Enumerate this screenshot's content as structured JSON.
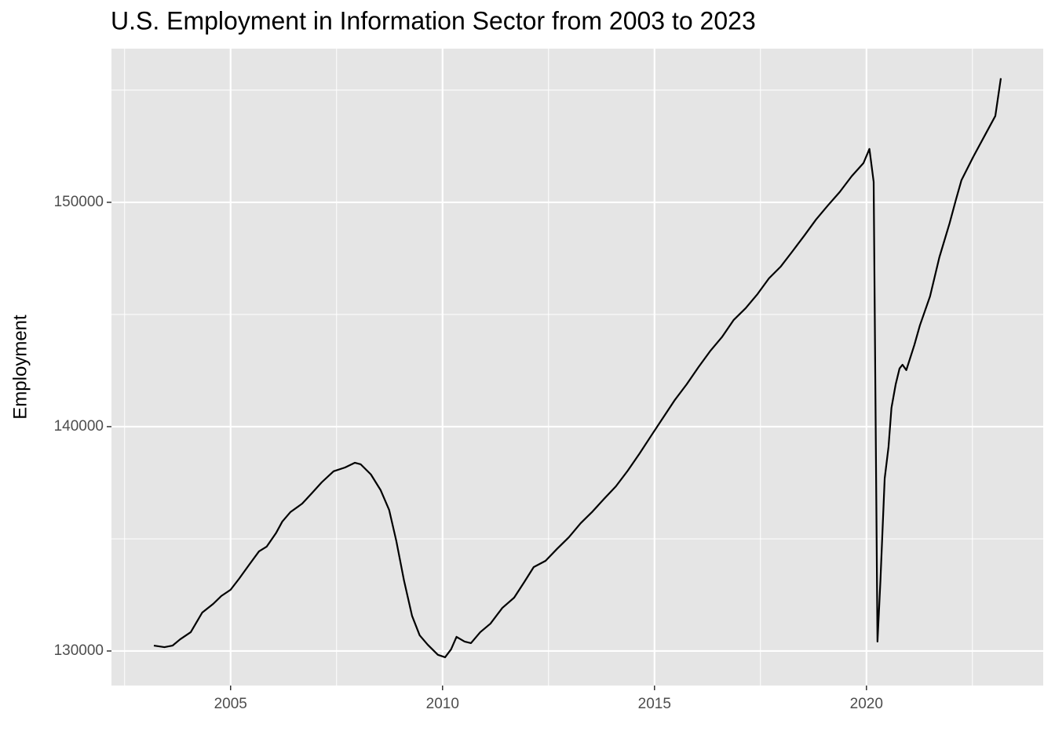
{
  "chart_data": {
    "type": "line",
    "title": "U.S. Employment in Information Sector from 2003 to 2023",
    "y_label": "Employment",
    "x": [
      2003.19,
      2003.44,
      2003.63,
      2003.81,
      2004.06,
      2004.33,
      2004.59,
      2004.78,
      2005.0,
      2005.2,
      2005.44,
      2005.67,
      2005.85,
      2006.07,
      2006.22,
      2006.41,
      2006.69,
      2006.93,
      2007.15,
      2007.43,
      2007.7,
      2007.93,
      2008.07,
      2008.31,
      2008.54,
      2008.74,
      2008.91,
      2009.09,
      2009.28,
      2009.46,
      2009.65,
      2009.89,
      2010.06,
      2010.2,
      2010.33,
      2010.52,
      2010.67,
      2010.89,
      2011.13,
      2011.41,
      2011.69,
      2011.93,
      2012.15,
      2012.43,
      2012.7,
      2012.98,
      2013.26,
      2013.54,
      2013.81,
      2014.09,
      2014.37,
      2014.65,
      2014.93,
      2015.2,
      2015.48,
      2015.76,
      2016.04,
      2016.31,
      2016.59,
      2016.87,
      2017.15,
      2017.43,
      2017.7,
      2017.98,
      2018.26,
      2018.54,
      2018.81,
      2019.09,
      2019.37,
      2019.65,
      2019.93,
      2020.07,
      2020.17,
      2020.26,
      2020.33,
      2020.43,
      2020.52,
      2020.59,
      2020.69,
      2020.78,
      2020.85,
      2020.94,
      2021.13,
      2021.26,
      2021.5,
      2021.72,
      2021.96,
      2022.11,
      2022.24,
      2022.52,
      2022.8,
      2023.04,
      2023.17
    ],
    "series": [
      {
        "name": "Employment",
        "color": "#000000",
        "values": [
          130240,
          130170,
          130240,
          130520,
          130840,
          131710,
          132100,
          132450,
          132730,
          133220,
          133850,
          134440,
          134650,
          135250,
          135770,
          136190,
          136570,
          137060,
          137520,
          138010,
          138180,
          138390,
          138320,
          137870,
          137170,
          136290,
          134900,
          133150,
          131570,
          130700,
          130280,
          129830,
          129720,
          130070,
          130630,
          130420,
          130350,
          130840,
          131220,
          131920,
          132380,
          133080,
          133740,
          134020,
          134550,
          135070,
          135700,
          136220,
          136780,
          137340,
          138040,
          138810,
          139620,
          140390,
          141190,
          141890,
          142660,
          143360,
          143990,
          144760,
          145280,
          145910,
          146610,
          147140,
          147830,
          148530,
          149230,
          149860,
          150460,
          151160,
          151750,
          152380,
          150910,
          130420,
          133150,
          137690,
          139090,
          140840,
          141890,
          142590,
          142760,
          142520,
          143640,
          144510,
          145810,
          147550,
          149060,
          150110,
          150980,
          152030,
          153010,
          153850,
          155530
        ]
      }
    ],
    "xlim": [
      2002.19,
      2024.17
    ],
    "ylim": [
      128460,
      156850
    ],
    "xticks": [
      2005,
      2010,
      2015,
      2020
    ],
    "yticks": [
      130000,
      140000,
      150000
    ],
    "minor_xticks": [
      2002.5,
      2007.5,
      2012.5,
      2017.5,
      2022.5
    ],
    "minor_yticks": [
      135000,
      145000,
      155000
    ],
    "grid": true,
    "background": "#e5e5e5"
  }
}
